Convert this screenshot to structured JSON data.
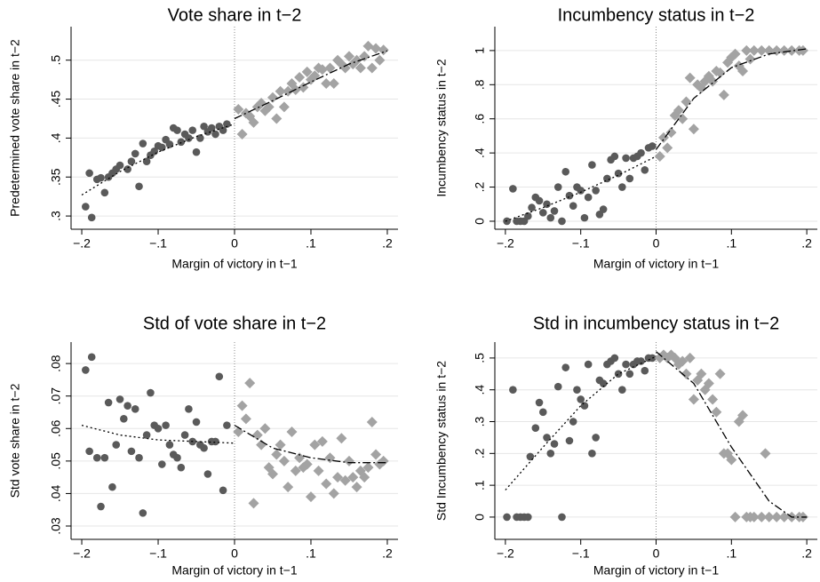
{
  "chart_data": [
    {
      "type": "scatter",
      "title": "Vote share in t−2",
      "xlabel": "Margin of victory in t−1",
      "ylabel": "Predetermined vote share in t−2",
      "xlim": [
        -0.214,
        0.214
      ],
      "ylim": [
        0.283,
        0.543
      ],
      "xticks": [
        {
          "value": -0.2,
          "label": "−.2"
        },
        {
          "value": -0.1,
          "label": "−.1"
        },
        0,
        {
          "value": 0.1,
          "label": ".1"
        },
        {
          "value": 0.2,
          "label": ".2"
        }
      ],
      "yticks": [
        {
          "value": 0.3,
          "label": ".3"
        },
        {
          "value": 0.35,
          "label": ".35"
        },
        {
          "value": 0.4,
          "label": ".4"
        },
        {
          "value": 0.45,
          "label": ".45"
        },
        {
          "value": 0.5,
          "label": ".5"
        }
      ],
      "grid": true,
      "refline_x": 0,
      "series": [
        {
          "marker": "circle",
          "color": "#5a5a5a",
          "x": [
            -0.195,
            -0.19,
            -0.187,
            -0.18,
            -0.175,
            -0.17,
            -0.165,
            -0.16,
            -0.155,
            -0.15,
            -0.14,
            -0.135,
            -0.13,
            -0.125,
            -0.12,
            -0.115,
            -0.11,
            -0.105,
            -0.1,
            -0.095,
            -0.09,
            -0.085,
            -0.08,
            -0.075,
            -0.07,
            -0.065,
            -0.06,
            -0.055,
            -0.05,
            -0.045,
            -0.04,
            -0.035,
            -0.03,
            -0.025,
            -0.02,
            -0.015,
            -0.01
          ],
          "values": [
            0.312,
            0.355,
            0.298,
            0.347,
            0.349,
            0.33,
            0.35,
            0.355,
            0.36,
            0.365,
            0.36,
            0.37,
            0.38,
            0.338,
            0.393,
            0.37,
            0.378,
            0.383,
            0.39,
            0.388,
            0.398,
            0.392,
            0.413,
            0.41,
            0.395,
            0.405,
            0.4,
            0.41,
            0.382,
            0.4,
            0.415,
            0.408,
            0.413,
            0.405,
            0.415,
            0.41,
            0.418
          ]
        },
        {
          "marker": "diamond",
          "color": "#a3a3a3",
          "x": [
            0.005,
            0.01,
            0.015,
            0.02,
            0.025,
            0.03,
            0.035,
            0.04,
            0.045,
            0.05,
            0.055,
            0.06,
            0.065,
            0.07,
            0.075,
            0.08,
            0.085,
            0.09,
            0.095,
            0.1,
            0.105,
            0.11,
            0.115,
            0.12,
            0.125,
            0.13,
            0.135,
            0.14,
            0.145,
            0.15,
            0.155,
            0.16,
            0.165,
            0.17,
            0.175,
            0.18,
            0.185,
            0.19,
            0.195
          ],
          "values": [
            0.437,
            0.405,
            0.432,
            0.428,
            0.42,
            0.44,
            0.445,
            0.435,
            0.44,
            0.452,
            0.425,
            0.46,
            0.44,
            0.46,
            0.47,
            0.462,
            0.478,
            0.465,
            0.485,
            0.475,
            0.48,
            0.49,
            0.488,
            0.47,
            0.49,
            0.47,
            0.5,
            0.495,
            0.49,
            0.505,
            0.495,
            0.5,
            0.49,
            0.505,
            0.518,
            0.49,
            0.515,
            0.5,
            0.513
          ]
        },
        {
          "line": "dot",
          "color": "#000000",
          "x": [
            -0.2,
            -0.15,
            -0.1,
            -0.05,
            0
          ],
          "values": [
            0.327,
            0.357,
            0.382,
            0.402,
            0.418
          ]
        },
        {
          "line": "dashdot",
          "color": "#000000",
          "x": [
            0,
            0.05,
            0.1,
            0.15,
            0.2
          ],
          "values": [
            0.425,
            0.448,
            0.472,
            0.495,
            0.512
          ]
        }
      ]
    },
    {
      "type": "scatter",
      "title": "Incumbency status in t−2",
      "xlabel": "Margin of victory in t−1",
      "ylabel": "Incumbency status in t−2",
      "xlim": [
        -0.214,
        0.214
      ],
      "ylim": [
        -0.047,
        1.14
      ],
      "xticks": [
        {
          "value": -0.2,
          "label": "−.2"
        },
        {
          "value": -0.1,
          "label": "−.1"
        },
        0,
        {
          "value": 0.1,
          "label": ".1"
        },
        {
          "value": 0.2,
          "label": ".2"
        }
      ],
      "yticks": [
        0,
        {
          "value": 0.2,
          "label": ".2"
        },
        {
          "value": 0.4,
          "label": ".4"
        },
        {
          "value": 0.6,
          "label": ".6"
        },
        {
          "value": 0.8,
          "label": ".8"
        },
        1
      ],
      "grid": true,
      "refline_x": 0,
      "series": [
        {
          "marker": "circle",
          "color": "#5a5a5a",
          "x": [
            -0.198,
            -0.19,
            -0.185,
            -0.18,
            -0.175,
            -0.17,
            -0.165,
            -0.16,
            -0.155,
            -0.15,
            -0.145,
            -0.14,
            -0.135,
            -0.13,
            -0.125,
            -0.12,
            -0.115,
            -0.11,
            -0.105,
            -0.1,
            -0.095,
            -0.09,
            -0.085,
            -0.08,
            -0.075,
            -0.07,
            -0.065,
            -0.06,
            -0.055,
            -0.05,
            -0.045,
            -0.04,
            -0.035,
            -0.03,
            -0.025,
            -0.02,
            -0.015,
            -0.01,
            -0.005
          ],
          "values": [
            0,
            0.19,
            0,
            0,
            0,
            0.03,
            0.08,
            0.14,
            0.12,
            0.05,
            0.1,
            0.02,
            0.06,
            0.2,
            0,
            0.29,
            0.15,
            0.09,
            0.2,
            0.18,
            0.02,
            0.14,
            0.33,
            0.18,
            0.04,
            0.07,
            0.25,
            0.36,
            0.38,
            0.28,
            0.2,
            0.37,
            0.25,
            0.37,
            0.38,
            0.4,
            0.3,
            0.43,
            0.44
          ]
        },
        {
          "marker": "diamond",
          "color": "#a3a3a3",
          "x": [
            0.005,
            0.01,
            0.015,
            0.02,
            0.025,
            0.03,
            0.035,
            0.04,
            0.045,
            0.05,
            0.055,
            0.06,
            0.065,
            0.07,
            0.075,
            0.08,
            0.085,
            0.09,
            0.095,
            0.1,
            0.105,
            0.11,
            0.115,
            0.12,
            0.125,
            0.13,
            0.14,
            0.15,
            0.16,
            0.17,
            0.18,
            0.19,
            0.195
          ],
          "values": [
            0.38,
            0.49,
            0.43,
            0.52,
            0.62,
            0.65,
            0.6,
            0.7,
            0.84,
            0.54,
            0.8,
            0.78,
            0.82,
            0.85,
            0.82,
            0.88,
            0.87,
            0.74,
            0.93,
            0.96,
            0.98,
            0.91,
            0.88,
            1,
            0.95,
            1,
            1,
            1,
            1,
            1,
            1,
            1,
            1
          ]
        },
        {
          "line": "dot",
          "color": "#000000",
          "x": [
            -0.2,
            -0.15,
            -0.1,
            -0.05,
            0
          ],
          "values": [
            0,
            0.08,
            0.17,
            0.27,
            0.38
          ]
        },
        {
          "line": "dashdot",
          "color": "#000000",
          "x": [
            0,
            0.05,
            0.1,
            0.15,
            0.2
          ],
          "values": [
            0.42,
            0.72,
            0.9,
            0.98,
            1.01
          ]
        }
      ]
    },
    {
      "type": "scatter",
      "title": "Std of vote share in t−2",
      "xlabel": "Margin of victory in t−1",
      "ylabel": "Std vote share in t−2",
      "xlim": [
        -0.214,
        0.214
      ],
      "ylim": [
        0.0259,
        0.0866
      ],
      "xticks": [
        {
          "value": -0.2,
          "label": "−.2"
        },
        {
          "value": -0.1,
          "label": "−.1"
        },
        0,
        {
          "value": 0.1,
          "label": ".1"
        },
        {
          "value": 0.2,
          "label": ".2"
        }
      ],
      "yticks": [
        {
          "value": 0.03,
          "label": ".03"
        },
        {
          "value": 0.04,
          "label": ".04"
        },
        {
          "value": 0.05,
          "label": ".05"
        },
        {
          "value": 0.06,
          "label": ".06"
        },
        {
          "value": 0.07,
          "label": ".07"
        },
        {
          "value": 0.08,
          "label": ".08"
        }
      ],
      "grid": true,
      "refline_x": 0,
      "series": [
        {
          "marker": "circle",
          "color": "#5a5a5a",
          "x": [
            -0.195,
            -0.19,
            -0.187,
            -0.18,
            -0.175,
            -0.17,
            -0.165,
            -0.16,
            -0.155,
            -0.15,
            -0.145,
            -0.14,
            -0.135,
            -0.13,
            -0.125,
            -0.12,
            -0.115,
            -0.11,
            -0.105,
            -0.1,
            -0.095,
            -0.09,
            -0.085,
            -0.08,
            -0.075,
            -0.07,
            -0.065,
            -0.06,
            -0.055,
            -0.05,
            -0.045,
            -0.04,
            -0.035,
            -0.03,
            -0.025,
            -0.02,
            -0.015,
            -0.01
          ],
          "values": [
            0.078,
            0.053,
            0.082,
            0.051,
            0.036,
            0.051,
            0.068,
            0.042,
            0.055,
            0.069,
            0.063,
            0.067,
            0.053,
            0.066,
            0.051,
            0.034,
            0.058,
            0.071,
            0.061,
            0.06,
            0.049,
            0.061,
            0.055,
            0.052,
            0.051,
            0.048,
            0.058,
            0.066,
            0.056,
            0.062,
            0.055,
            0.054,
            0.046,
            0.056,
            0.056,
            0.076,
            0.041,
            0.061
          ]
        },
        {
          "marker": "diamond",
          "color": "#a3a3a3",
          "x": [
            0.005,
            0.01,
            0.015,
            0.02,
            0.025,
            0.03,
            0.035,
            0.04,
            0.045,
            0.05,
            0.055,
            0.06,
            0.065,
            0.07,
            0.075,
            0.08,
            0.085,
            0.09,
            0.095,
            0.1,
            0.105,
            0.11,
            0.115,
            0.12,
            0.125,
            0.13,
            0.135,
            0.14,
            0.145,
            0.15,
            0.155,
            0.16,
            0.165,
            0.17,
            0.175,
            0.18,
            0.185,
            0.19,
            0.195
          ],
          "values": [
            0.059,
            0.067,
            0.063,
            0.074,
            0.037,
            0.058,
            0.055,
            0.06,
            0.048,
            0.046,
            0.052,
            0.055,
            0.05,
            0.042,
            0.059,
            0.047,
            0.051,
            0.048,
            0.049,
            0.039,
            0.055,
            0.047,
            0.056,
            0.043,
            0.051,
            0.04,
            0.045,
            0.057,
            0.044,
            0.05,
            0.045,
            0.042,
            0.047,
            0.045,
            0.048,
            0.062,
            0.052,
            0.049,
            0.05
          ]
        },
        {
          "line": "dot",
          "color": "#000000",
          "x": [
            -0.2,
            -0.15,
            -0.1,
            -0.05,
            0
          ],
          "values": [
            0.061,
            0.058,
            0.0565,
            0.056,
            0.0555
          ]
        },
        {
          "line": "dashdot",
          "color": "#000000",
          "x": [
            0,
            0.05,
            0.1,
            0.15,
            0.2
          ],
          "values": [
            0.061,
            0.054,
            0.051,
            0.0495,
            0.0495
          ]
        }
      ]
    },
    {
      "type": "scatter",
      "title": "Std in incumbency status in t−2",
      "xlabel": "Margin of victory in t−1",
      "ylabel": "Std Incumbency status in t−2",
      "xlim": [
        -0.214,
        0.214
      ],
      "ylim": [
        -0.07,
        0.55
      ],
      "xticks": [
        {
          "value": -0.2,
          "label": "−.2"
        },
        {
          "value": -0.1,
          "label": "−.1"
        },
        0,
        {
          "value": 0.1,
          "label": ".1"
        },
        {
          "value": 0.2,
          "label": ".2"
        }
      ],
      "yticks": [
        0,
        {
          "value": 0.1,
          "label": ".1"
        },
        {
          "value": 0.2,
          "label": ".2"
        },
        {
          "value": 0.3,
          "label": ".3"
        },
        {
          "value": 0.4,
          "label": ".4"
        },
        {
          "value": 0.5,
          "label": ".5"
        }
      ],
      "grid": true,
      "refline_x": 0,
      "series": [
        {
          "marker": "circle",
          "color": "#5a5a5a",
          "x": [
            -0.198,
            -0.19,
            -0.185,
            -0.18,
            -0.175,
            -0.17,
            -0.167,
            -0.16,
            -0.155,
            -0.15,
            -0.145,
            -0.14,
            -0.135,
            -0.13,
            -0.125,
            -0.12,
            -0.115,
            -0.11,
            -0.105,
            -0.1,
            -0.095,
            -0.09,
            -0.085,
            -0.08,
            -0.075,
            -0.07,
            -0.065,
            -0.06,
            -0.055,
            -0.05,
            -0.045,
            -0.04,
            -0.035,
            -0.03,
            -0.025,
            -0.02,
            -0.015,
            -0.01,
            -0.005
          ],
          "values": [
            0,
            0.4,
            0,
            0,
            0,
            0,
            0.19,
            0.28,
            0.36,
            0.33,
            0.25,
            0.2,
            0.23,
            0.41,
            0,
            0.47,
            0.24,
            0.3,
            0.4,
            0.37,
            0.35,
            0.48,
            0.2,
            0.25,
            0.43,
            0.42,
            0.48,
            0.49,
            0.5,
            0.45,
            0.4,
            0.48,
            0.45,
            0.48,
            0.49,
            0.49,
            0.46,
            0.5,
            0.5
          ]
        },
        {
          "marker": "diamond",
          "color": "#a3a3a3",
          "x": [
            0.005,
            0.01,
            0.015,
            0.02,
            0.025,
            0.03,
            0.035,
            0.04,
            0.045,
            0.05,
            0.055,
            0.06,
            0.065,
            0.07,
            0.075,
            0.08,
            0.085,
            0.09,
            0.095,
            0.1,
            0.105,
            0.11,
            0.115,
            0.12,
            0.125,
            0.13,
            0.14,
            0.145,
            0.15,
            0.16,
            0.17,
            0.18,
            0.19,
            0.195
          ],
          "values": [
            0.5,
            0.51,
            0.5,
            0.51,
            0.5,
            0.48,
            0.49,
            0.45,
            0.5,
            0.37,
            0.43,
            0.45,
            0.4,
            0.42,
            0.37,
            0.33,
            0.45,
            0.2,
            0.2,
            0.18,
            0,
            0.3,
            0.32,
            0,
            0,
            0,
            0,
            0.2,
            0,
            0,
            0,
            0,
            0,
            0
          ]
        },
        {
          "line": "dot",
          "color": "#000000",
          "x": [
            -0.2,
            -0.15,
            -0.1,
            -0.05,
            0
          ],
          "values": [
            0.085,
            0.22,
            0.35,
            0.45,
            0.505
          ]
        },
        {
          "line": "dashdot",
          "color": "#000000",
          "x": [
            0,
            0.05,
            0.1,
            0.15,
            0.18,
            0.2
          ],
          "values": [
            0.52,
            0.42,
            0.22,
            0.05,
            0,
            0
          ]
        }
      ]
    }
  ]
}
